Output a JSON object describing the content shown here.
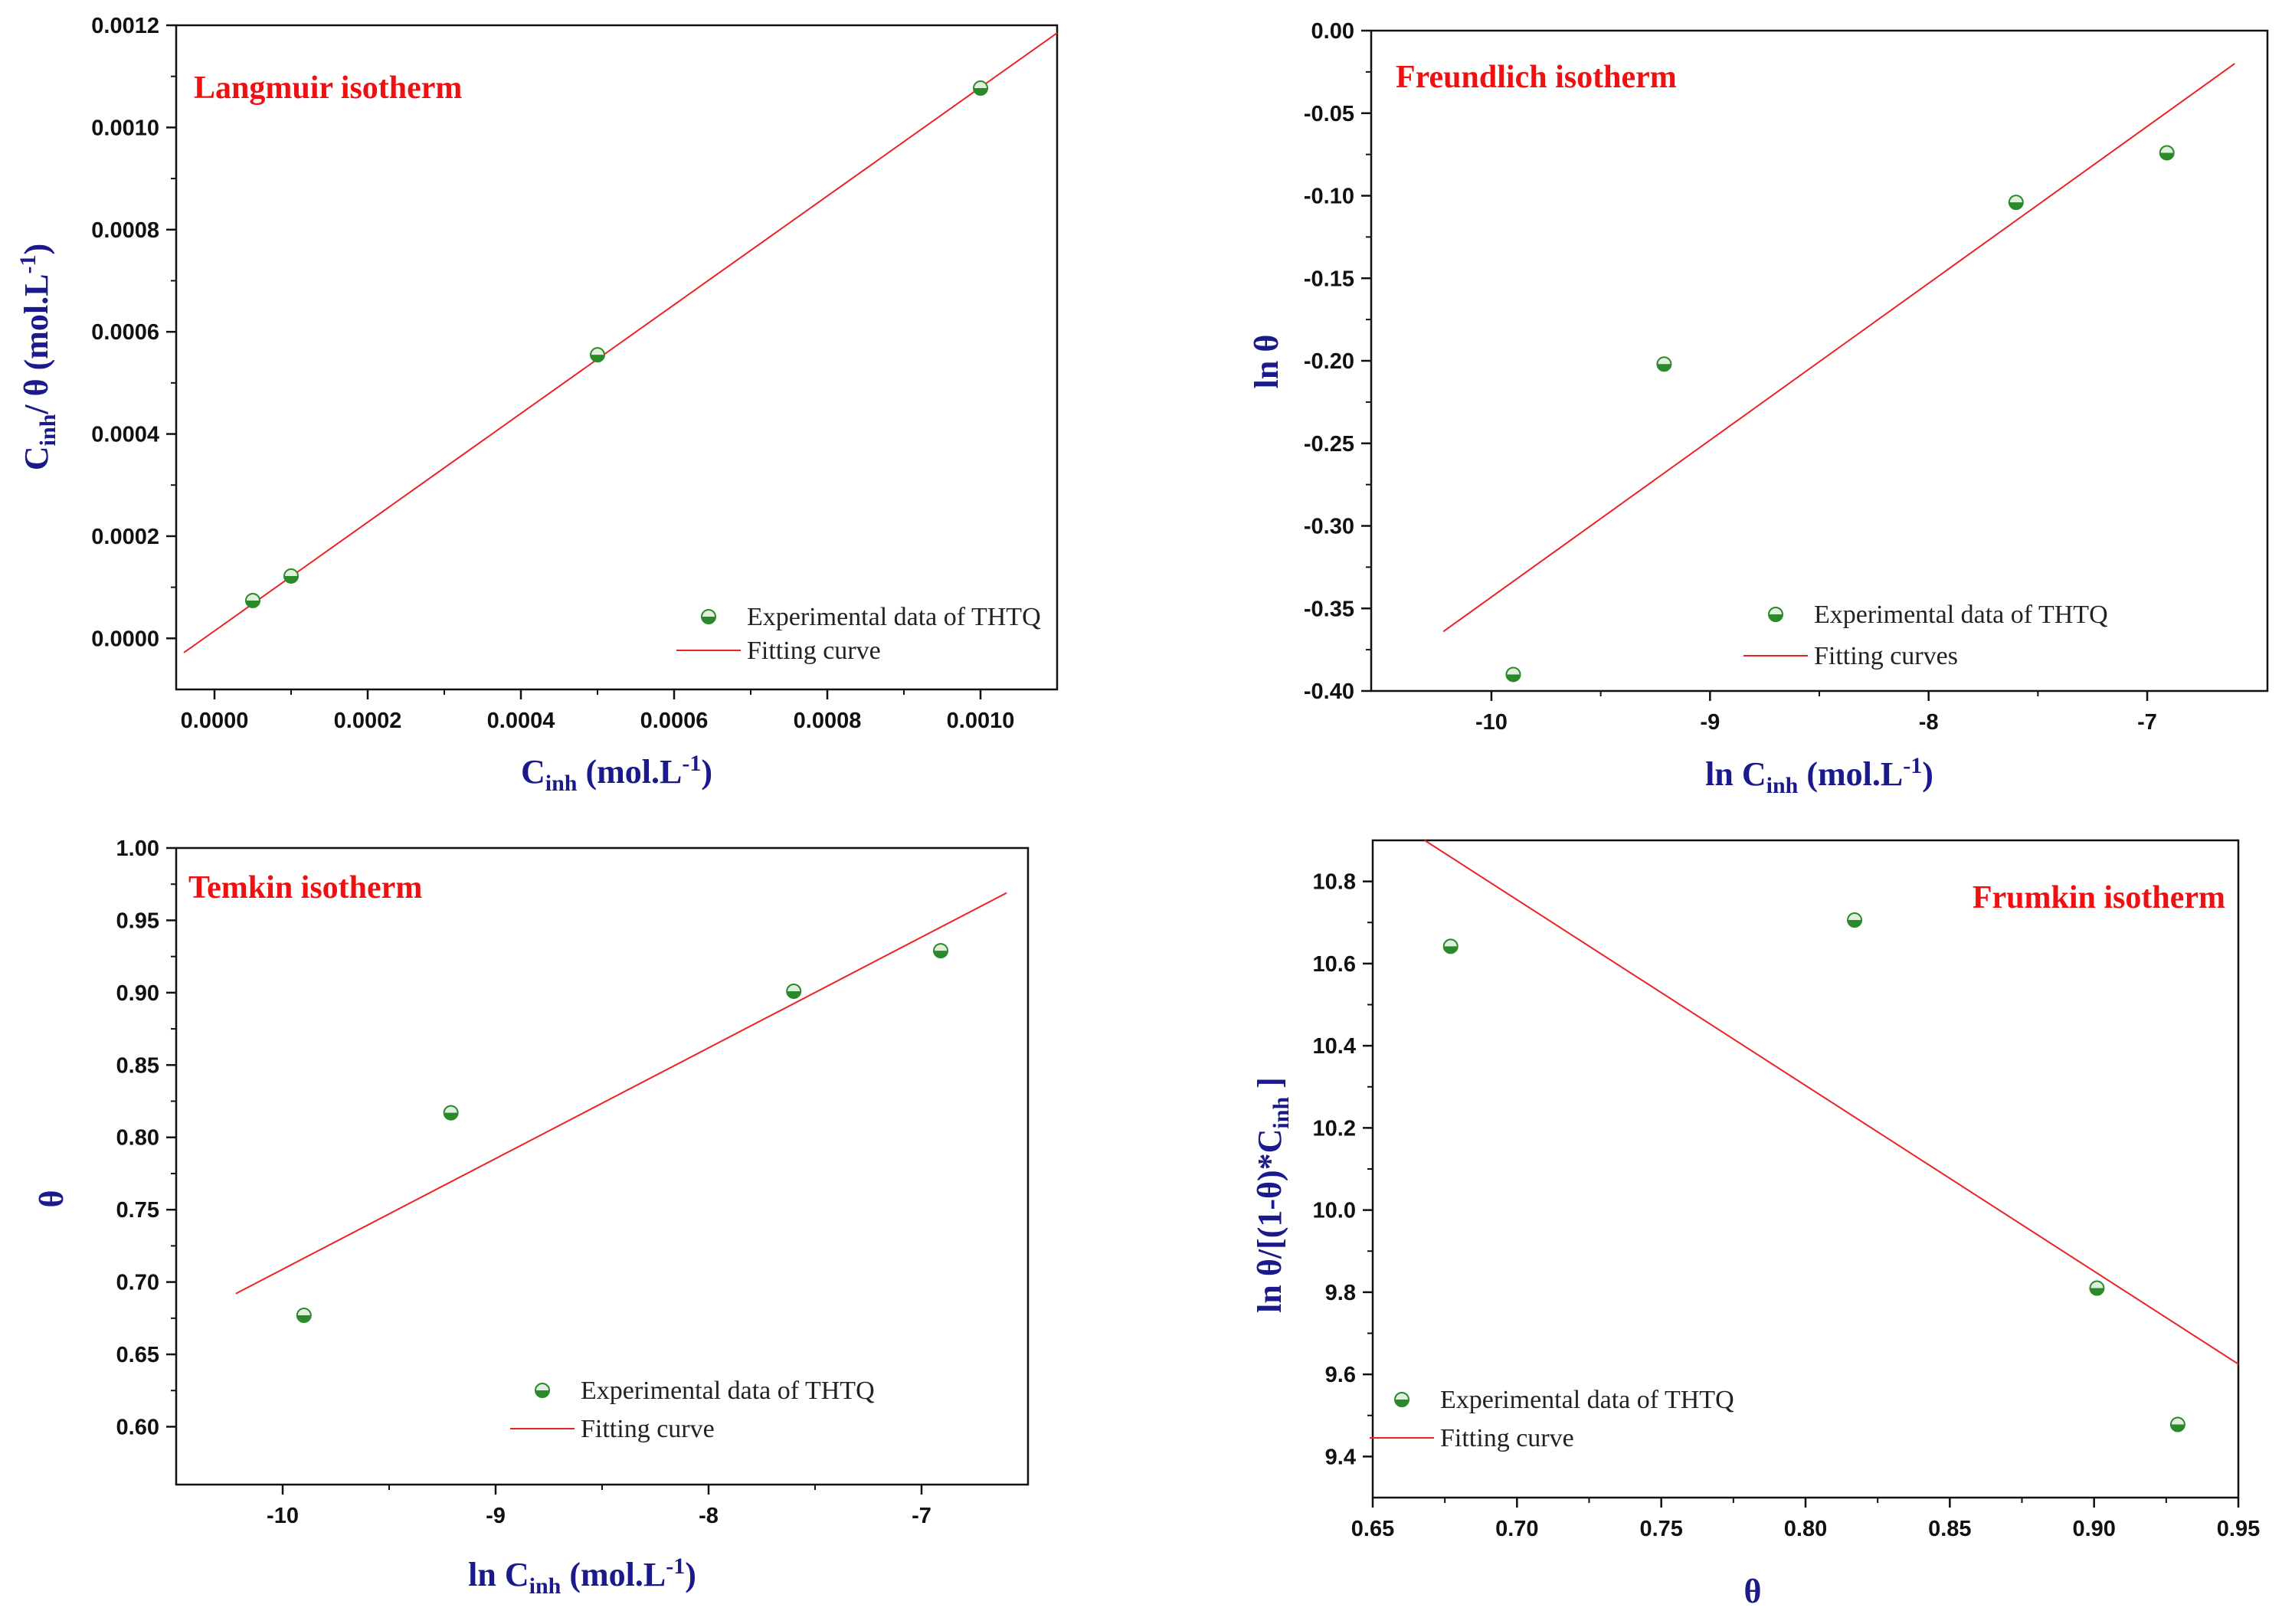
{
  "colors": {
    "point_fill": "#2a8a2a",
    "point_light": "#dfeedd",
    "fit_line": "#ee2222",
    "axis_title": "#1a1a8c",
    "panel_title": "#ee1111"
  },
  "chart_data": [
    {
      "type": "scatter",
      "title": "Langmuir isotherm",
      "xlabel": "C_inh  (mol.L^-1)",
      "xlabel_parts": {
        "main": "C",
        "sub": "inh",
        "rest": "  (mol.L",
        "sup": "-1",
        "end": ")"
      },
      "ylabel": "C_inh/ θ (mol.L^-1)",
      "ylabel_parts": {
        "main": "C",
        "sub": "inh",
        "rest": "/ θ (mol.L",
        "sup": "-1",
        "end": ")"
      },
      "xlim": [
        -5e-05,
        0.0011
      ],
      "ylim": [
        -0.0001,
        0.0012
      ],
      "xticks": [
        0.0,
        0.0002,
        0.0004,
        0.0006,
        0.0008,
        0.001
      ],
      "xtick_labels": [
        "0.0000",
        "0.0002",
        "0.0004",
        "0.0006",
        "0.0008",
        "0.0010"
      ],
      "yticks": [
        0.0,
        0.0002,
        0.0004,
        0.0006,
        0.0008,
        0.001,
        0.0012
      ],
      "ytick_labels": [
        "0.0000",
        "0.0002",
        "0.0004",
        "0.0006",
        "0.0008",
        "0.0010",
        "0.0012"
      ],
      "points": {
        "name": "Experimental data of THTQ",
        "x": [
          5e-05,
          0.0001,
          0.0005,
          0.001
        ],
        "y": [
          7.4e-05,
          0.000122,
          0.000555,
          0.001077
        ]
      },
      "fit": {
        "name": "Fitting curve",
        "x": [
          -4e-05,
          0.0011
        ],
        "y": [
          -2.8e-05,
          0.001185
        ]
      },
      "legend_position": "bottom-right"
    },
    {
      "type": "scatter",
      "title": "Freundlich isotherm",
      "xlabel": "ln C_inh (mol.L^-1)",
      "xlabel_parts": {
        "main": "ln C",
        "sub": "inh",
        "rest": " (mol.L",
        "sup": "-1",
        "end": ")"
      },
      "ylabel": "ln θ",
      "ylabel_parts": {
        "main": "ln θ",
        "sub": "",
        "rest": "",
        "sup": "",
        "end": ""
      },
      "xlim": [
        -10.55,
        -6.45
      ],
      "ylim": [
        -0.4,
        0.0
      ],
      "xticks": [
        -10,
        -9,
        -8,
        -7
      ],
      "xtick_labels": [
        "-10",
        "-9",
        "-8",
        "-7"
      ],
      "yticks": [
        -0.4,
        -0.35,
        -0.3,
        -0.25,
        -0.2,
        -0.15,
        -0.1,
        -0.05,
        0.0
      ],
      "ytick_labels": [
        "-0.40",
        "-0.35",
        "-0.30",
        "-0.25",
        "-0.20",
        "-0.15",
        "-0.10",
        "-0.05",
        "0.00"
      ],
      "points": {
        "name": "Experimental data of THTQ",
        "x": [
          -9.9,
          -9.21,
          -7.6,
          -6.91
        ],
        "y": [
          -0.39,
          -0.202,
          -0.104,
          -0.074
        ]
      },
      "fit": {
        "name": "Fitting curves",
        "x": [
          -10.22,
          -6.6
        ],
        "y": [
          -0.364,
          -0.02
        ]
      },
      "legend_position": "bottom-right"
    },
    {
      "type": "scatter",
      "title": "Temkin isotherm",
      "xlabel": "ln C_inh  (mol.L^-1)",
      "xlabel_parts": {
        "main": "ln C",
        "sub": "inh",
        "rest": "  (mol.L",
        "sup": "-1",
        "end": ")"
      },
      "ylabel": "θ",
      "ylabel_parts": {
        "main": "θ",
        "sub": "",
        "rest": "",
        "sup": "",
        "end": ""
      },
      "xlim": [
        -10.5,
        -6.5
      ],
      "ylim": [
        0.56,
        1.0
      ],
      "xticks": [
        -10,
        -9,
        -8,
        -7
      ],
      "xtick_labels": [
        "-10",
        "-9",
        "-8",
        "-7"
      ],
      "yticks": [
        0.6,
        0.65,
        0.7,
        0.75,
        0.8,
        0.85,
        0.9,
        0.95,
        1.0
      ],
      "ytick_labels": [
        "0.60",
        "0.65",
        "0.70",
        "0.75",
        "0.80",
        "0.85",
        "0.90",
        "0.95",
        "1.00"
      ],
      "points": {
        "name": "Experimental data of THTQ",
        "x": [
          -9.9,
          -9.21,
          -7.6,
          -6.91
        ],
        "y": [
          0.677,
          0.817,
          0.901,
          0.929
        ]
      },
      "fit": {
        "name": "Fitting curve",
        "x": [
          -10.22,
          -6.6
        ],
        "y": [
          0.692,
          0.969
        ]
      },
      "legend_position": "bottom-right"
    },
    {
      "type": "scatter",
      "title": "Frumkin isotherm",
      "xlabel": "θ",
      "xlabel_parts": {
        "main": "θ",
        "sub": "",
        "rest": "",
        "sup": "",
        "end": ""
      },
      "ylabel": "ln θ/[(1-θ)*C_inh ]",
      "ylabel_parts": {
        "main": "ln θ/[(1-θ)*C",
        "sub": "inh",
        "rest": " ]",
        "sup": "",
        "end": ""
      },
      "xlim": [
        0.65,
        0.95
      ],
      "ylim": [
        9.3,
        10.9
      ],
      "xticks": [
        0.65,
        0.7,
        0.75,
        0.8,
        0.85,
        0.9,
        0.95
      ],
      "xtick_labels": [
        "0.65",
        "0.70",
        "0.75",
        "0.80",
        "0.85",
        "0.90",
        "0.95"
      ],
      "yticks": [
        9.4,
        9.6,
        9.8,
        10.0,
        10.2,
        10.4,
        10.6,
        10.8
      ],
      "ytick_labels": [
        "9.4",
        "9.6",
        "9.8",
        "10.0",
        "10.2",
        "10.4",
        "10.6",
        "10.8"
      ],
      "points": {
        "name": "Experimental data of THTQ",
        "x": [
          0.677,
          0.817,
          0.901,
          0.929
        ],
        "y": [
          10.642,
          10.706,
          9.81,
          9.478
        ]
      },
      "fit": {
        "name": "Fitting curve",
        "x": [
          0.668,
          0.95
        ],
        "y": [
          10.9,
          9.625
        ]
      },
      "legend_position": "bottom-left"
    }
  ]
}
